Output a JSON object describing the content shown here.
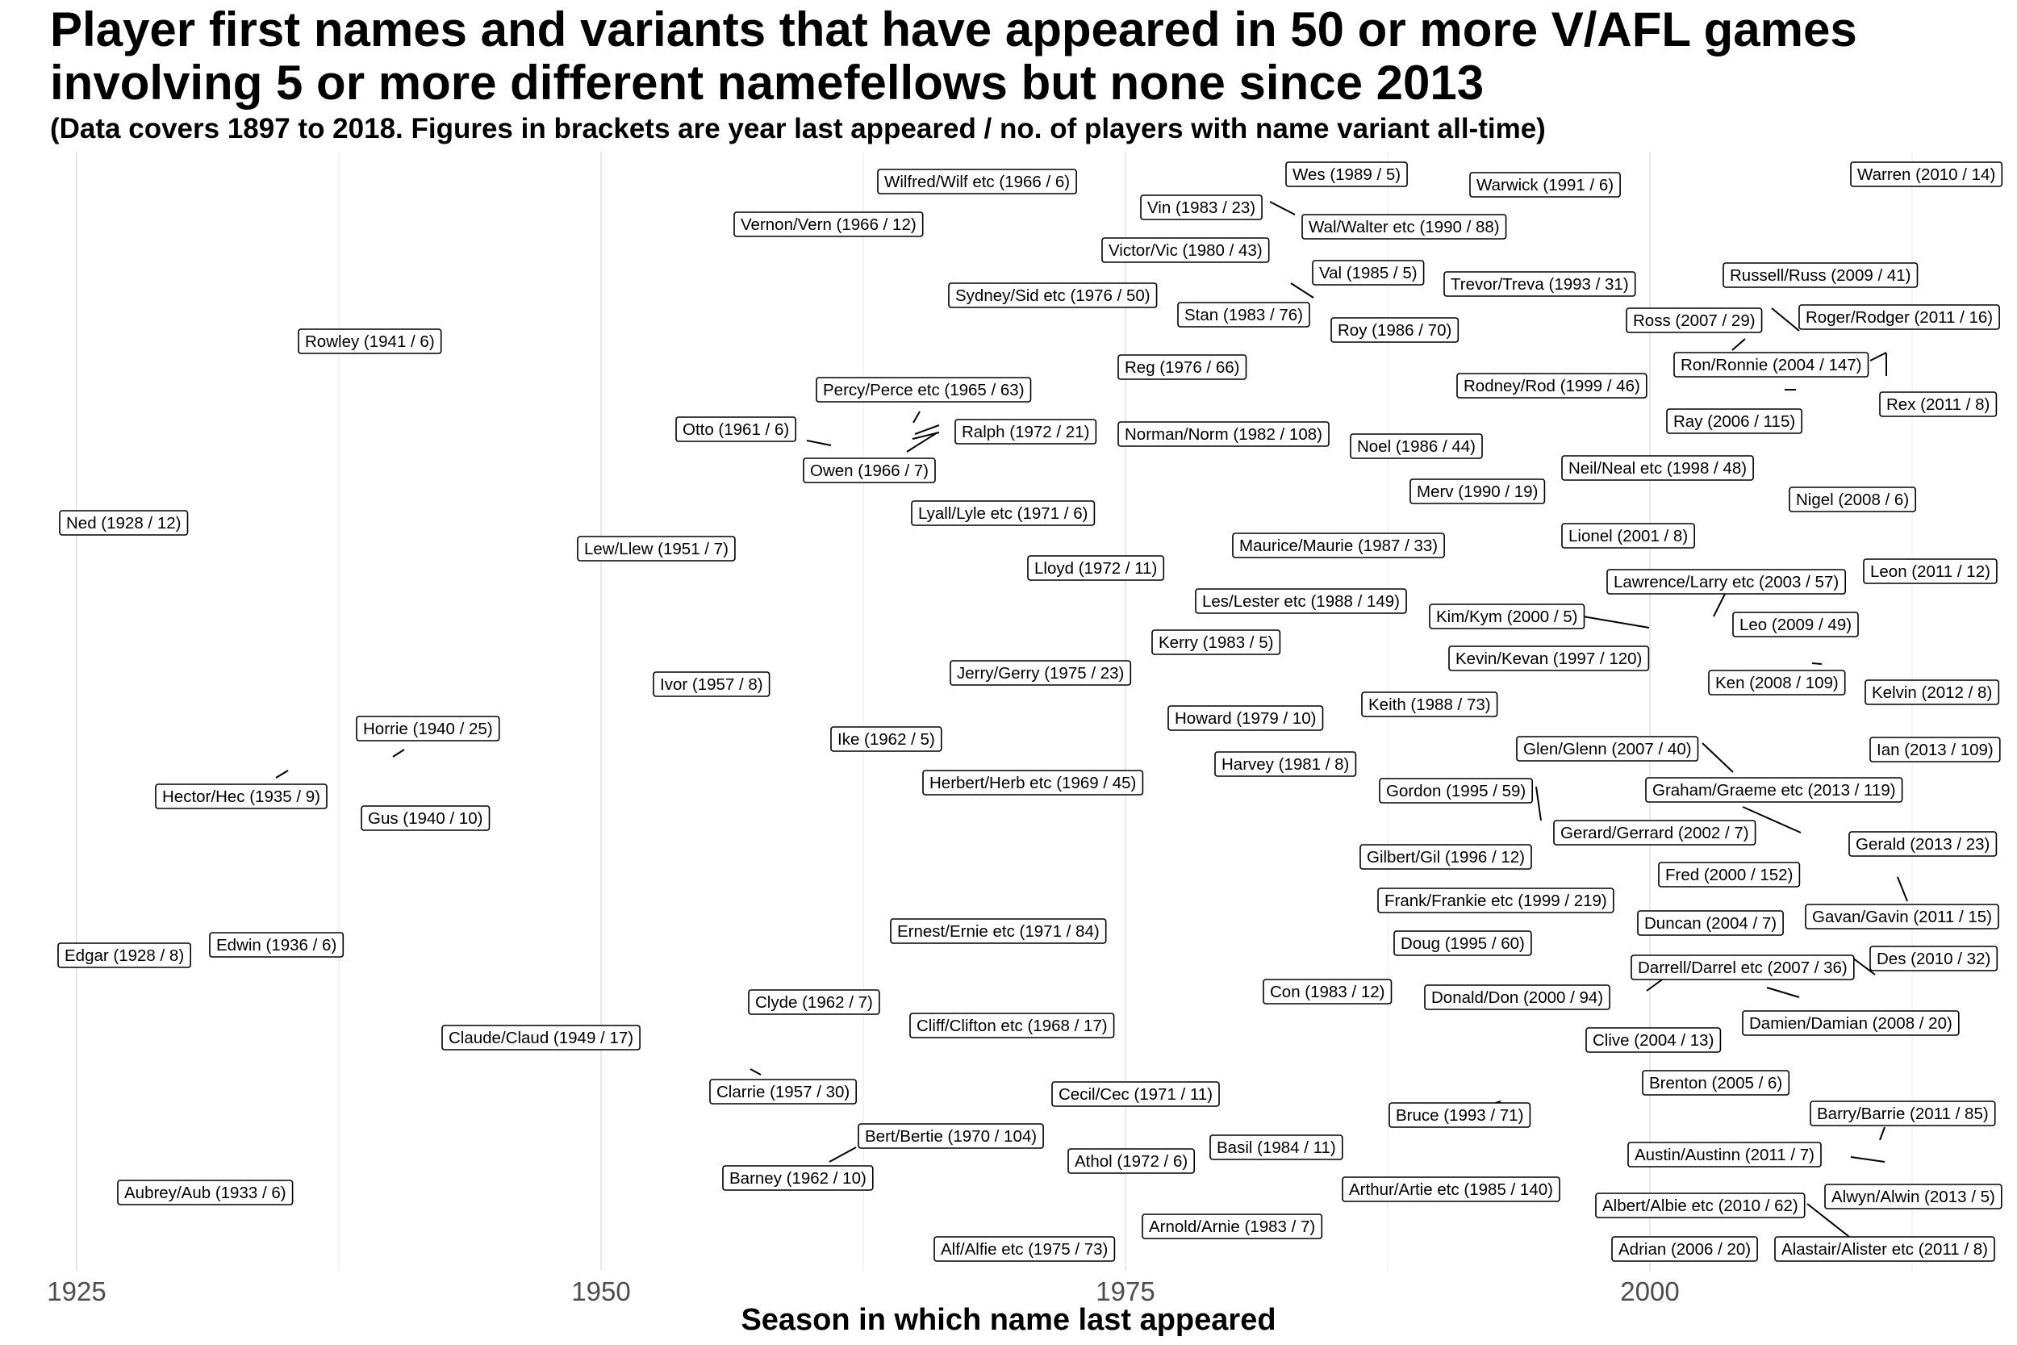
{
  "title_line1": "Player first names and variants that have appeared in 50 or more V/AFL games",
  "title_line2": "involving 5 or more different namefellows but none since 2013",
  "subtitle": "(Data covers 1897 to 2018. Figures in brackets are year last appeared / no. of players with name variant all-time)",
  "chart_data": {
    "type": "scatter",
    "title": "Player first names and variants that have appeared in 50 or more V/AFL games involving 5 or more different namefellows but none since 2013",
    "subtitle": "(Data covers 1897 to 2018. Figures in brackets are year last appeared / no. of players with name variant all-time)",
    "xlabel": "Season in which name last appeared",
    "ylabel": "",
    "x_ticks": [
      1925,
      1950,
      1975,
      2000
    ],
    "xlim": [
      1925,
      2013
    ],
    "grid": "vertical major and minor gridlines only",
    "legend": "none",
    "y_axis": "none (labels ordered alphabetically from bottom to top)",
    "points": [
      {
        "label": "Warren (2010 / 14)",
        "x": 2010,
        "players": 14
      },
      {
        "label": "Wes (1989 / 5)",
        "x": 1989,
        "players": 5
      },
      {
        "label": "Warwick (1991 / 6)",
        "x": 1991,
        "players": 6
      },
      {
        "label": "Wilfred/Wilf etc (1966 / 6)",
        "x": 1966,
        "players": 6
      },
      {
        "label": "Vin (1983 / 23)",
        "x": 1983,
        "players": 23
      },
      {
        "label": "Vernon/Vern (1966 / 12)",
        "x": 1966,
        "players": 12
      },
      {
        "label": "Wal/Walter etc (1990 / 88)",
        "x": 1990,
        "players": 88
      },
      {
        "label": "Victor/Vic (1980 / 43)",
        "x": 1980,
        "players": 43
      },
      {
        "label": "Val (1985 / 5)",
        "x": 1985,
        "players": 5
      },
      {
        "label": "Russell/Russ (2009 / 41)",
        "x": 2009,
        "players": 41
      },
      {
        "label": "Trevor/Treva (1993 / 31)",
        "x": 1993,
        "players": 31
      },
      {
        "label": "Sydney/Sid etc (1976 / 50)",
        "x": 1976,
        "players": 50
      },
      {
        "label": "Stan (1983 / 76)",
        "x": 1983,
        "players": 76
      },
      {
        "label": "Roger/Rodger (2011 / 16)",
        "x": 2011,
        "players": 16
      },
      {
        "label": "Ross (2007 / 29)",
        "x": 2007,
        "players": 29
      },
      {
        "label": "Roy (1986 / 70)",
        "x": 1986,
        "players": 70
      },
      {
        "label": "Rowley (1941 / 6)",
        "x": 1941,
        "players": 6
      },
      {
        "label": "Ron/Ronnie (2004 / 147)",
        "x": 2004,
        "players": 147
      },
      {
        "label": "Reg (1976 / 66)",
        "x": 1976,
        "players": 66
      },
      {
        "label": "Rodney/Rod (1999 / 46)",
        "x": 1999,
        "players": 46
      },
      {
        "label": "Percy/Perce etc (1965 / 63)",
        "x": 1965,
        "players": 63
      },
      {
        "label": "Rex (2011 / 8)",
        "x": 2011,
        "players": 8
      },
      {
        "label": "Ray (2006 / 115)",
        "x": 2006,
        "players": 115
      },
      {
        "label": "Otto (1961 / 6)",
        "x": 1961,
        "players": 6
      },
      {
        "label": "Ralph (1972 / 21)",
        "x": 1972,
        "players": 21
      },
      {
        "label": "Norman/Norm (1982 / 108)",
        "x": 1982,
        "players": 108
      },
      {
        "label": "Noel (1986 / 44)",
        "x": 1986,
        "players": 44
      },
      {
        "label": "Owen (1966 / 7)",
        "x": 1966,
        "players": 7
      },
      {
        "label": "Neil/Neal etc (1998 / 48)",
        "x": 1998,
        "players": 48
      },
      {
        "label": "Merv (1990 / 19)",
        "x": 1990,
        "players": 19
      },
      {
        "label": "Nigel (2008 / 6)",
        "x": 2008,
        "players": 6
      },
      {
        "label": "Lyall/Lyle etc (1971 / 6)",
        "x": 1971,
        "players": 6
      },
      {
        "label": "Ned (1928 / 12)",
        "x": 1928,
        "players": 12
      },
      {
        "label": "Lionel (2001 / 8)",
        "x": 2001,
        "players": 8
      },
      {
        "label": "Maurice/Maurie (1987 / 33)",
        "x": 1987,
        "players": 33
      },
      {
        "label": "Lew/Llew (1951 / 7)",
        "x": 1951,
        "players": 7
      },
      {
        "label": "Leon (2011 / 12)",
        "x": 2011,
        "players": 12
      },
      {
        "label": "Lloyd (1972 / 11)",
        "x": 1972,
        "players": 11
      },
      {
        "label": "Lawrence/Larry etc (2003 / 57)",
        "x": 2003,
        "players": 57
      },
      {
        "label": "Les/Lester etc (1988 / 149)",
        "x": 1988,
        "players": 149
      },
      {
        "label": "Kim/Kym (2000 / 5)",
        "x": 2000,
        "players": 5
      },
      {
        "label": "Leo (2009 / 49)",
        "x": 2009,
        "players": 49
      },
      {
        "label": "Kerry (1983 / 5)",
        "x": 1983,
        "players": 5
      },
      {
        "label": "Kevin/Kevan (1997 / 120)",
        "x": 1997,
        "players": 120
      },
      {
        "label": "Jerry/Gerry (1975 / 23)",
        "x": 1975,
        "players": 23
      },
      {
        "label": "Ivor (1957 / 8)",
        "x": 1957,
        "players": 8
      },
      {
        "label": "Ken (2008 / 109)",
        "x": 2008,
        "players": 109
      },
      {
        "label": "Kelvin (2012 / 8)",
        "x": 2012,
        "players": 8
      },
      {
        "label": "Keith (1988 / 73)",
        "x": 1988,
        "players": 73
      },
      {
        "label": "Howard (1979 / 10)",
        "x": 1979,
        "players": 10
      },
      {
        "label": "Horrie (1940 / 25)",
        "x": 1940,
        "players": 25
      },
      {
        "label": "Ike (1962 / 5)",
        "x": 1962,
        "players": 5
      },
      {
        "label": "Glen/Glenn (2007 / 40)",
        "x": 2007,
        "players": 40
      },
      {
        "label": "Ian (2013 / 109)",
        "x": 2013,
        "players": 109
      },
      {
        "label": "Harvey (1981 / 8)",
        "x": 1981,
        "players": 8
      },
      {
        "label": "Herbert/Herb etc (1969 / 45)",
        "x": 1969,
        "players": 45
      },
      {
        "label": "Gordon (1995 / 59)",
        "x": 1995,
        "players": 59
      },
      {
        "label": "Graham/Graeme etc (2013 / 119)",
        "x": 2013,
        "players": 119
      },
      {
        "label": "Hector/Hec (1935 / 9)",
        "x": 1935,
        "players": 9
      },
      {
        "label": "Gus (1940 / 10)",
        "x": 1940,
        "players": 10
      },
      {
        "label": "Gerard/Gerrard (2002 / 7)",
        "x": 2002,
        "players": 7
      },
      {
        "label": "Gerald (2013 / 23)",
        "x": 2013,
        "players": 23
      },
      {
        "label": "Gilbert/Gil (1996 / 12)",
        "x": 1996,
        "players": 12
      },
      {
        "label": "Fred (2000 / 152)",
        "x": 2000,
        "players": 152
      },
      {
        "label": "Frank/Frankie etc (1999 / 219)",
        "x": 1999,
        "players": 219
      },
      {
        "label": "Gavan/Gavin (2011 / 15)",
        "x": 2011,
        "players": 15
      },
      {
        "label": "Duncan (2004 / 7)",
        "x": 2004,
        "players": 7
      },
      {
        "label": "Ernest/Ernie etc (1971 / 84)",
        "x": 1971,
        "players": 84
      },
      {
        "label": "Edwin (1936 / 6)",
        "x": 1936,
        "players": 6
      },
      {
        "label": "Doug (1995 / 60)",
        "x": 1995,
        "players": 60
      },
      {
        "label": "Edgar (1928 / 8)",
        "x": 1928,
        "players": 8
      },
      {
        "label": "Des (2010 / 32)",
        "x": 2010,
        "players": 32
      },
      {
        "label": "Darrell/Darrel etc (2007 / 36)",
        "x": 2007,
        "players": 36
      },
      {
        "label": "Con (1983 / 12)",
        "x": 1983,
        "players": 12
      },
      {
        "label": "Donald/Don (2000 / 94)",
        "x": 2000,
        "players": 94
      },
      {
        "label": "Clyde (1962 / 7)",
        "x": 1962,
        "players": 7
      },
      {
        "label": "Damien/Damian (2008 / 20)",
        "x": 2008,
        "players": 20
      },
      {
        "label": "Cliff/Clifton etc (1968 / 17)",
        "x": 1968,
        "players": 17
      },
      {
        "label": "Claude/Claud (1949 / 17)",
        "x": 1949,
        "players": 17
      },
      {
        "label": "Clive (2004 / 13)",
        "x": 2004,
        "players": 13
      },
      {
        "label": "Brenton (2005 / 6)",
        "x": 2005,
        "players": 6
      },
      {
        "label": "Clarrie (1957 / 30)",
        "x": 1957,
        "players": 30
      },
      {
        "label": "Cecil/Cec (1971 / 11)",
        "x": 1971,
        "players": 11
      },
      {
        "label": "Bruce (1993 / 71)",
        "x": 1993,
        "players": 71
      },
      {
        "label": "Barry/Barrie (2011 / 85)",
        "x": 2011,
        "players": 85
      },
      {
        "label": "Bert/Bertie (1970 / 104)",
        "x": 1970,
        "players": 104
      },
      {
        "label": "Basil (1984 / 11)",
        "x": 1984,
        "players": 11
      },
      {
        "label": "Austin/Austinn (2011 / 7)",
        "x": 2011,
        "players": 7
      },
      {
        "label": "Athol (1972 / 6)",
        "x": 1972,
        "players": 6
      },
      {
        "label": "Barney (1962 / 10)",
        "x": 1962,
        "players": 10
      },
      {
        "label": "Arthur/Artie etc (1985 / 140)",
        "x": 1985,
        "players": 140
      },
      {
        "label": "Alwyn/Alwin (2013 / 5)",
        "x": 2013,
        "players": 5
      },
      {
        "label": "Aubrey/Aub (1933 / 6)",
        "x": 1933,
        "players": 6
      },
      {
        "label": "Albert/Albie etc (2010 / 62)",
        "x": 2010,
        "players": 62
      },
      {
        "label": "Arnold/Arnie (1983 / 7)",
        "x": 1983,
        "players": 7
      },
      {
        "label": "Alf/Alfie etc (1975 / 73)",
        "x": 1975,
        "players": 73
      },
      {
        "label": "Adrian (2006 / 20)",
        "x": 2006,
        "players": 20
      },
      {
        "label": "Alastair/Alister etc (2011 / 8)",
        "x": 2011,
        "players": 8
      }
    ]
  }
}
